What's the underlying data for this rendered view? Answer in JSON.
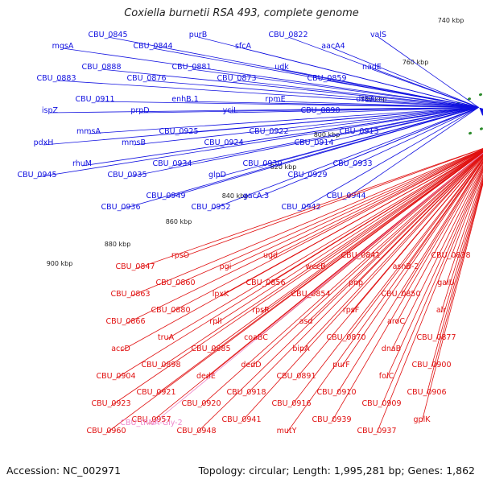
{
  "title": "Coxiella burnetii RSA 493, complete genome",
  "accession": "Accession: NC_002971",
  "topology": "Topology: circular; Length: 1,995,281 bp; Genes: 1,862",
  "kbp_ticks": [
    "740 kbp",
    "760 kbp",
    "780 kbp",
    "800 kbp",
    "820 kbp",
    "840 kbp",
    "860 kbp",
    "880 kbp",
    "900 kbp"
  ],
  "colors": {
    "forward": "#1010e0",
    "reverse": "#e01010",
    "trna": "#ee88cc",
    "backbone": "#888888",
    "tick": "#2a8a2a"
  },
  "forward_labels": [
    "valS",
    "aacA4",
    "CBU_0822",
    "sfcA",
    "purB",
    "CBU_0844",
    "CBU_0845",
    "mgsA",
    "nadE",
    "CBU_0859",
    "udk",
    "CBU_0873",
    "CBU_0881",
    "CBU_0876",
    "CBU_0888",
    "CBU_0883",
    "dsbA",
    "CBU_0890",
    "rpmE",
    "yciL",
    "enhB.1",
    "prpD",
    "CBU_0911",
    "ispZ",
    "CBU_0913",
    "CBU_0914",
    "CBU_0922",
    "CBU_0924",
    "CBU_0925",
    "mmsB",
    "mmsA",
    "pdxH",
    "CBU_0933",
    "CBU_0929",
    "CBU_0930",
    "glpD",
    "CBU_0934",
    "CBU_0935",
    "rhuM",
    "CBU_0945",
    "CBU_0944",
    "CBU_0942",
    "gacA.3",
    "CBU_0952",
    "CBU_0949",
    "CBU_0936"
  ],
  "reverse_labels": [
    "CBU_0838",
    "asnB-2",
    "CBU_0841",
    "wecB",
    "ugd",
    "pgi",
    "rpsO",
    "CBU_0847",
    "galU",
    "CBU_0850",
    "pnp",
    "CBU_0854",
    "CBU_0856",
    "lpxK",
    "CBU_0860",
    "CBU_0863",
    "alr",
    "aroC",
    "rpsF",
    "asd",
    "rpsR",
    "rplI",
    "CBU_0880",
    "CBU_0866",
    "CBU_0877",
    "dnaB",
    "CBU_0870",
    "bipA",
    "coaBC",
    "CBU_0885",
    "truA",
    "accD",
    "CBU_0900",
    "folC",
    "purF",
    "CBU_0891",
    "dedD",
    "dedE",
    "CBU_0898",
    "CBU_0904",
    "CBU_0906",
    "CBU_0909",
    "CBU_0910",
    "CBU_0916",
    "CBU_0918",
    "CBU_0920",
    "CBU_0921",
    "CBU_0923",
    "gplK",
    "CBU_0937",
    "CBU_0939",
    "mutY",
    "CBU_0941",
    "CBU_0948",
    "CBU_0957",
    "CBU_0960"
  ],
  "trna_labels": [
    "CBU_tRNA-Gly-2"
  ]
}
